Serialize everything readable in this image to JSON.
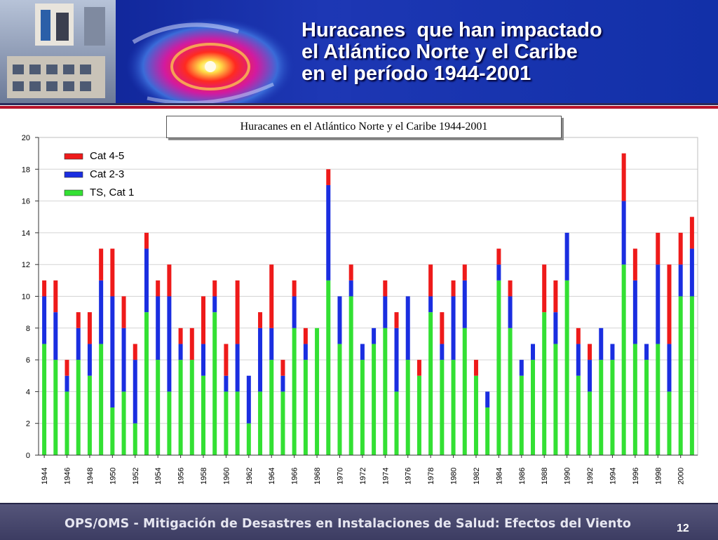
{
  "slide": {
    "heading_lines": [
      "Huracanes  que han impactado",
      "el Atlántico Norte y el Caribe",
      "en el período 1944-2001"
    ],
    "footer_text": "OPS/OMS - Mitigación de Desastres en Instalaciones de Salud: Efectos del Viento",
    "page_number": "12",
    "colors": {
      "header_blue": "#1d37b4",
      "accent_red": "#b8142a",
      "footer_slate": "#46466c"
    }
  },
  "chart_data": {
    "type": "bar",
    "stacked": true,
    "title": "Huracanes en el Atlántico Norte y el Caribe 1944-2001",
    "xlabel": "",
    "ylabel": "",
    "ylim": [
      0,
      20
    ],
    "yticks": [
      0,
      2,
      4,
      6,
      8,
      10,
      12,
      14,
      16,
      18,
      20
    ],
    "grid": true,
    "legend_position": "top-left",
    "x_tick_labels": [
      "1944",
      "1946",
      "1948",
      "1950",
      "1952",
      "1954",
      "1956",
      "1958",
      "1960",
      "1962",
      "1964",
      "1966",
      "1968",
      "1970",
      "1972",
      "1974",
      "1976",
      "1978",
      "1980",
      "1982",
      "1984",
      "1986",
      "1988",
      "1990",
      "1992",
      "1994",
      "1996",
      "1998",
      "2000"
    ],
    "categories": [
      "1944",
      "1945",
      "1946",
      "1947",
      "1948",
      "1949",
      "1950",
      "1951",
      "1952",
      "1953",
      "1954",
      "1955",
      "1956",
      "1957",
      "1958",
      "1959",
      "1960",
      "1961",
      "1962",
      "1963",
      "1964",
      "1965",
      "1966",
      "1967",
      "1968",
      "1969",
      "1970",
      "1971",
      "1972",
      "1973",
      "1974",
      "1975",
      "1976",
      "1977",
      "1978",
      "1979",
      "1980",
      "1981",
      "1982",
      "1983",
      "1984",
      "1985",
      "1986",
      "1987",
      "1988",
      "1989",
      "1990",
      "1991",
      "1992",
      "1993",
      "1994",
      "1995",
      "1996",
      "1997",
      "1998",
      "1999",
      "2000",
      "2001"
    ],
    "series": [
      {
        "name": "TS, Cat 1",
        "color": "#33e033",
        "values": [
          7,
          6,
          4,
          6,
          5,
          7,
          3,
          4,
          2,
          9,
          6,
          4,
          6,
          6,
          5,
          9,
          4,
          4,
          2,
          4,
          6,
          4,
          8,
          6,
          8,
          11,
          7,
          10,
          6,
          7,
          8,
          4,
          6,
          5,
          9,
          6,
          6,
          8,
          5,
          3,
          11,
          8,
          5,
          6,
          9,
          7,
          11,
          5,
          4,
          6,
          6,
          12,
          7,
          6,
          7,
          4,
          10,
          10
        ]
      },
      {
        "name": "Cat 2-3",
        "color": "#1a2ee0",
        "values": [
          3,
          3,
          1,
          2,
          2,
          4,
          7,
          4,
          4,
          4,
          4,
          6,
          1,
          0,
          2,
          1,
          1,
          3,
          3,
          4,
          2,
          1,
          2,
          1,
          0,
          6,
          3,
          1,
          1,
          1,
          2,
          4,
          4,
          0,
          1,
          1,
          4,
          3,
          0,
          1,
          1,
          2,
          1,
          1,
          0,
          2,
          3,
          2,
          2,
          2,
          1,
          4,
          4,
          1,
          5,
          3,
          2,
          3
        ]
      },
      {
        "name": "Cat 4-5",
        "color": "#ee1a1a",
        "values": [
          1,
          2,
          1,
          1,
          2,
          2,
          3,
          2,
          1,
          1,
          1,
          2,
          1,
          2,
          3,
          1,
          2,
          4,
          0,
          1,
          4,
          1,
          1,
          1,
          0,
          1,
          0,
          1,
          0,
          0,
          1,
          1,
          0,
          1,
          2,
          2,
          1,
          1,
          1,
          0,
          1,
          1,
          0,
          0,
          3,
          2,
          0,
          1,
          1,
          0,
          0,
          3,
          2,
          0,
          2,
          5,
          2,
          2
        ]
      }
    ]
  }
}
